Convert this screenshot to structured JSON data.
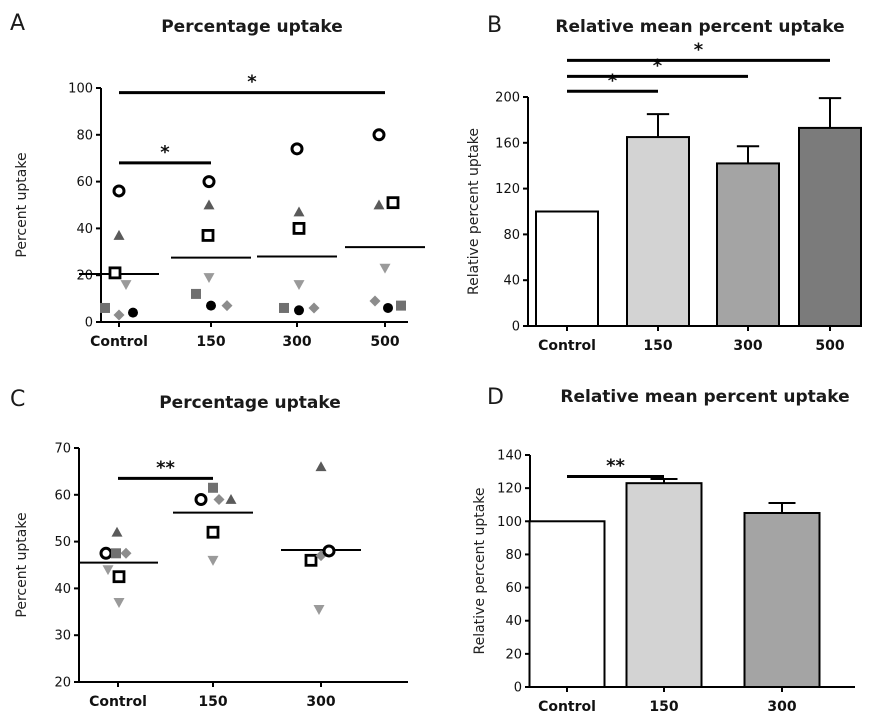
{
  "chart_data": [
    {
      "id": "A",
      "type": "scatter",
      "panel_label": "A",
      "title": "Percentage uptake",
      "ylabel": "Percent uptake",
      "categories": [
        "Control",
        "150",
        "300",
        "500"
      ],
      "ylim": [
        0,
        100
      ],
      "yticks": [
        0,
        20,
        40,
        60,
        80,
        100
      ],
      "means": [
        20.5,
        27.5,
        28,
        32
      ],
      "series": [
        {
          "marker": "circle-open",
          "values": [
            56,
            60,
            74,
            80
          ]
        },
        {
          "marker": "square-open",
          "values": [
            21,
            37,
            40,
            51
          ]
        },
        {
          "marker": "triangle-up",
          "values": [
            37,
            50,
            47,
            50
          ]
        },
        {
          "marker": "triangle-down",
          "values": [
            16,
            19,
            16,
            23
          ]
        },
        {
          "marker": "square",
          "values": [
            6,
            12,
            6,
            7
          ]
        },
        {
          "marker": "diamond",
          "values": [
            3,
            7,
            6,
            9
          ]
        },
        {
          "marker": "circle",
          "values": [
            4,
            7,
            5,
            6
          ]
        }
      ],
      "significance": [
        {
          "from": 0,
          "to": 1,
          "y": 68,
          "label": "*"
        },
        {
          "from": 0,
          "to": 3,
          "y": 98,
          "label": "*"
        }
      ]
    },
    {
      "id": "B",
      "type": "bar",
      "panel_label": "B",
      "title": "Relative mean percent uptake",
      "ylabel": "Relative percent uptake",
      "categories": [
        "Control",
        "150",
        "300",
        "500"
      ],
      "values": [
        100,
        165,
        142,
        173
      ],
      "errors": [
        0,
        20,
        15,
        26
      ],
      "colors": [
        "#ffffff",
        "#d3d3d3",
        "#a4a4a4",
        "#7b7b7b"
      ],
      "ylim": [
        0,
        200
      ],
      "yticks": [
        0,
        40,
        80,
        120,
        160,
        200
      ],
      "significance": [
        {
          "from": 0,
          "to": 1,
          "y": 205,
          "label": "*"
        },
        {
          "from": 0,
          "to": 2,
          "y": 218,
          "label": "*"
        },
        {
          "from": 0,
          "to": 3,
          "y": 232,
          "label": "*"
        }
      ]
    },
    {
      "id": "C",
      "type": "scatter",
      "panel_label": "C",
      "title": "Percentage uptake",
      "ylabel": "Percent uptake",
      "categories": [
        "Control",
        "150",
        "300"
      ],
      "ylim": [
        20,
        70
      ],
      "yticks": [
        20,
        30,
        40,
        50,
        60,
        70
      ],
      "means": [
        45.5,
        56.2,
        48.2
      ],
      "points": [
        [
          {
            "marker": "circle-open",
            "dx": -12,
            "y": 47.5
          },
          {
            "marker": "square",
            "dx": -2,
            "y": 47.5
          },
          {
            "marker": "diamond",
            "dx": 8,
            "y": 47.5
          },
          {
            "marker": "triangle-up",
            "dx": -1,
            "y": 52
          },
          {
            "marker": "square-open",
            "dx": 1,
            "y": 42.5
          },
          {
            "marker": "triangle-down",
            "dx": -10,
            "y": 44
          },
          {
            "marker": "triangle-down",
            "dx": 1,
            "y": 37
          }
        ],
        [
          {
            "marker": "circle-open",
            "dx": -12,
            "y": 59
          },
          {
            "marker": "square",
            "dx": 0,
            "y": 61.5
          },
          {
            "marker": "diamond",
            "dx": 6,
            "y": 59
          },
          {
            "marker": "triangle-up",
            "dx": 18,
            "y": 59
          },
          {
            "marker": "square-open",
            "dx": 0,
            "y": 52
          },
          {
            "marker": "triangle-down",
            "dx": 0,
            "y": 46
          }
        ],
        [
          {
            "marker": "triangle-up",
            "dx": 0,
            "y": 66
          },
          {
            "marker": "square-open",
            "dx": -10,
            "y": 46
          },
          {
            "marker": "diamond",
            "dx": 0,
            "y": 47
          },
          {
            "marker": "circle-open",
            "dx": 8,
            "y": 48
          },
          {
            "marker": "triangle-down",
            "dx": -2,
            "y": 35.5
          }
        ]
      ],
      "significance": [
        {
          "from": 0,
          "to": 1,
          "y": 63.5,
          "label": "**"
        }
      ]
    },
    {
      "id": "D",
      "type": "bar",
      "panel_label": "D",
      "title": "Relative mean percent uptake",
      "ylabel": "Relative percent uptake",
      "categories": [
        "Control",
        "150",
        "300"
      ],
      "values": [
        100,
        123,
        105
      ],
      "errors": [
        0,
        2.5,
        6
      ],
      "colors": [
        "#ffffff",
        "#d3d3d3",
        "#a4a4a4"
      ],
      "ylim": [
        0,
        140
      ],
      "yticks": [
        0,
        20,
        40,
        60,
        80,
        100,
        120,
        140
      ],
      "significance": [
        {
          "from": 0,
          "to": 1,
          "y": 127,
          "label": "**"
        }
      ]
    }
  ],
  "colors": {
    "axis": "#000000",
    "marker_dark": "#000000",
    "marker_gray": "#5a5a5a",
    "marker_light": "#8c8c8c",
    "marker_lighter": "#9a9a9a"
  }
}
